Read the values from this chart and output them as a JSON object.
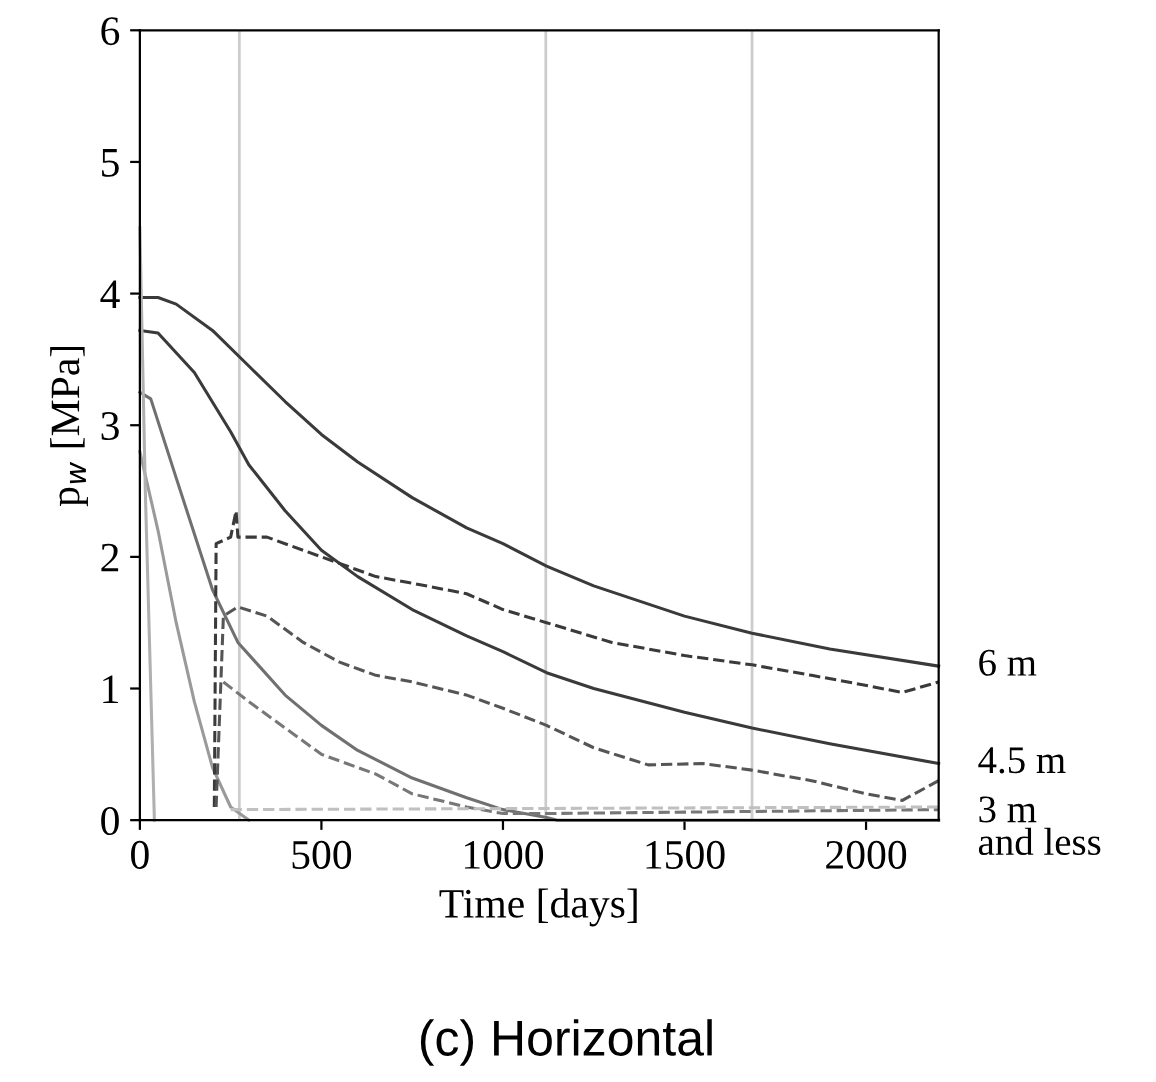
{
  "chart_data": {
    "type": "line",
    "title": "(c) Horizontal",
    "xlabel": "Time [days]",
    "ylabel": "p$_{w}$ [MPa]",
    "xlim": [
      0,
      2200
    ],
    "xticks": [
      0,
      500,
      1000,
      1500,
      2000
    ],
    "ylim": [
      0,
      6
    ],
    "yticks": [
      0,
      1,
      2,
      3,
      4,
      5,
      6
    ],
    "grid": false,
    "legend": false,
    "marker": "none",
    "ref_lines": [
      {
        "axis": "x",
        "value": 274,
        "color": "#cccccc"
      },
      {
        "axis": "x",
        "value": 1118,
        "color": "#cccccc"
      },
      {
        "axis": "x",
        "value": 1686,
        "color": "#cccccc"
      }
    ],
    "series": [
      {
        "name": "6 m",
        "color": "#3a3a3a",
        "line_style": "solid",
        "x": [
          0,
          50,
          100,
          200,
          300,
          400,
          500,
          600,
          750,
          900,
          1000,
          1120,
          1250,
          1500,
          1686,
          1900,
          2200
        ],
        "values": [
          3.97,
          3.97,
          3.92,
          3.72,
          3.45,
          3.18,
          2.93,
          2.72,
          2.45,
          2.22,
          2.1,
          1.93,
          1.78,
          1.55,
          1.42,
          1.3,
          1.17
        ]
      },
      {
        "name": "4.5 m",
        "color": "#3a3a3a",
        "line_style": "solid",
        "x": [
          0,
          50,
          150,
          250,
          300,
          400,
          500,
          600,
          750,
          900,
          1000,
          1120,
          1250,
          1500,
          1686,
          1900,
          2200
        ],
        "values": [
          3.72,
          3.7,
          3.4,
          2.95,
          2.7,
          2.35,
          2.05,
          1.85,
          1.6,
          1.4,
          1.28,
          1.12,
          1.0,
          0.82,
          0.7,
          0.58,
          0.43
        ]
      },
      {
        "name": "3 m\nand less",
        "color": "#707070",
        "line_style": "solid",
        "x": [
          0,
          30,
          100,
          200,
          270,
          400,
          500,
          600,
          750,
          900,
          1000,
          1120,
          1150,
          2200
        ],
        "values": [
          3.25,
          3.2,
          2.6,
          1.75,
          1.35,
          0.95,
          0.72,
          0.53,
          0.32,
          0.17,
          0.08,
          0.02,
          0,
          0
        ]
      },
      {
        "color": "#9a9a9a",
        "line_style": "solid",
        "x": [
          0,
          50,
          100,
          150,
          200,
          250,
          300
        ],
        "values": [
          2.8,
          2.2,
          1.5,
          0.9,
          0.4,
          0.1,
          0
        ]
      },
      {
        "color": "#b0b0b0",
        "line_style": "solid",
        "x": [
          0,
          15,
          40
        ],
        "values": [
          4.5,
          2.5,
          0
        ]
      },
      {
        "color": "#3a3a3a",
        "line_style": "dashed",
        "x": [
          205,
          210,
          250,
          265,
          270,
          350,
          500,
          650,
          750,
          900,
          1000,
          1120,
          1300,
          1500,
          1686,
          1850,
          1950,
          2100,
          2200
        ],
        "values": [
          0.1,
          2.1,
          2.15,
          2.35,
          2.15,
          2.15,
          2.0,
          1.85,
          1.8,
          1.72,
          1.6,
          1.5,
          1.35,
          1.25,
          1.18,
          1.1,
          1.05,
          0.97,
          1.05
        ]
      },
      {
        "color": "#555555",
        "line_style": "dashed",
        "x": [
          210,
          230,
          270,
          350,
          450,
          550,
          650,
          750,
          900,
          1000,
          1120,
          1250,
          1400,
          1550,
          1686,
          1850,
          2000,
          2100,
          2200
        ],
        "values": [
          0.1,
          1.55,
          1.62,
          1.55,
          1.35,
          1.2,
          1.1,
          1.05,
          0.95,
          0.85,
          0.72,
          0.55,
          0.42,
          0.43,
          0.38,
          0.3,
          0.2,
          0.15,
          0.3
        ]
      },
      {
        "color": "#777777",
        "line_style": "dashed",
        "x": [
          230,
          300,
          400,
          500,
          650,
          750,
          900,
          1000,
          1100,
          2200
        ],
        "values": [
          1.05,
          0.9,
          0.7,
          0.5,
          0.35,
          0.2,
          0.1,
          0.05,
          0.05,
          0.08
        ]
      },
      {
        "color": "#c0c0c0",
        "line_style": "dashed",
        "x": [
          250,
          2200
        ],
        "values": [
          0.08,
          0.1
        ]
      }
    ]
  }
}
